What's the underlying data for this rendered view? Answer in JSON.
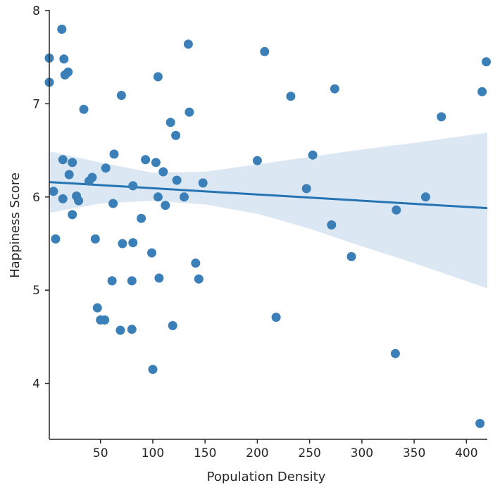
{
  "chart_data": {
    "type": "scatter",
    "title": "",
    "xlabel": "Population Density",
    "ylabel": "Happiness Score",
    "xlim": [
      1,
      420
    ],
    "ylim": [
      3.4,
      8.0
    ],
    "x_ticks": [
      50,
      100,
      150,
      200,
      250,
      300,
      350,
      400
    ],
    "y_ticks": [
      4,
      5,
      6,
      7,
      8
    ],
    "grid": false,
    "legend": "none",
    "point_color": "#3a7fb8",
    "line_color": "#2474b4",
    "band_color": "#dbe7f3",
    "regression": {
      "x": [
        1,
        420
      ],
      "y": [
        6.16,
        5.88
      ],
      "ci_x": [
        1,
        50,
        100,
        150,
        200,
        250,
        300,
        350,
        420
      ],
      "ci_lower": [
        5.83,
        5.93,
        5.96,
        5.92,
        5.82,
        5.66,
        5.47,
        5.29,
        5.02
      ],
      "ci_upper": [
        6.49,
        6.37,
        6.26,
        6.27,
        6.35,
        6.43,
        6.51,
        6.58,
        6.69
      ]
    },
    "points": [
      [
        1,
        7.49
      ],
      [
        1,
        7.23
      ],
      [
        5,
        6.06
      ],
      [
        7,
        5.55
      ],
      [
        13,
        7.8
      ],
      [
        14,
        6.4
      ],
      [
        14,
        5.98
      ],
      [
        15,
        7.48
      ],
      [
        16,
        7.31
      ],
      [
        19,
        7.34
      ],
      [
        20,
        6.24
      ],
      [
        23,
        6.37
      ],
      [
        23,
        5.81
      ],
      [
        27,
        6.01
      ],
      [
        29,
        5.96
      ],
      [
        34,
        6.94
      ],
      [
        39,
        6.17
      ],
      [
        42,
        6.21
      ],
      [
        45,
        5.55
      ],
      [
        47,
        4.81
      ],
      [
        50,
        4.68
      ],
      [
        54,
        4.68
      ],
      [
        55,
        6.31
      ],
      [
        61,
        5.1
      ],
      [
        62,
        5.93
      ],
      [
        63,
        6.46
      ],
      [
        69,
        4.57
      ],
      [
        70,
        7.09
      ],
      [
        71,
        5.5
      ],
      [
        80,
        5.1
      ],
      [
        80,
        4.58
      ],
      [
        81,
        6.12
      ],
      [
        81,
        5.51
      ],
      [
        89,
        5.77
      ],
      [
        93,
        6.4
      ],
      [
        99,
        5.4
      ],
      [
        100,
        4.15
      ],
      [
        103,
        6.37
      ],
      [
        105,
        7.29
      ],
      [
        105,
        6.0
      ],
      [
        106,
        5.13
      ],
      [
        110,
        6.27
      ],
      [
        112,
        5.91
      ],
      [
        117,
        6.8
      ],
      [
        119,
        4.62
      ],
      [
        122,
        6.66
      ],
      [
        123,
        6.18
      ],
      [
        130,
        6.0
      ],
      [
        134,
        7.64
      ],
      [
        135,
        6.91
      ],
      [
        141,
        5.29
      ],
      [
        144,
        5.12
      ],
      [
        148,
        6.15
      ],
      [
        200,
        6.39
      ],
      [
        207,
        7.56
      ],
      [
        218,
        4.71
      ],
      [
        232,
        7.08
      ],
      [
        247,
        6.09
      ],
      [
        253,
        6.45
      ],
      [
        271,
        5.7
      ],
      [
        274,
        7.16
      ],
      [
        290,
        5.36
      ],
      [
        332,
        4.32
      ],
      [
        333,
        5.86
      ],
      [
        361,
        6.0
      ],
      [
        376,
        6.86
      ],
      [
        413,
        3.57
      ],
      [
        415,
        7.13
      ],
      [
        419,
        7.45
      ]
    ]
  }
}
